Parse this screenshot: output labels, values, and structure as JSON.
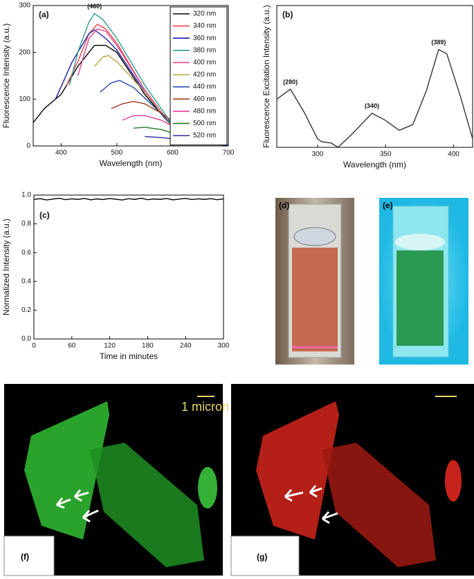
{
  "chart_data": [
    {
      "type": "line",
      "title": "(a)",
      "x_label": "Wavelength (nm)",
      "y_label": "Fluorescence Intensity (a.u.)",
      "annotations": [
        {
          "text": "(460)",
          "x": 460,
          "y": 283
        }
      ],
      "xlim": [
        350,
        700
      ],
      "xticks": [
        400,
        500,
        600,
        700
      ],
      "ylim": [
        0,
        300
      ],
      "yticks": [
        0,
        100,
        200,
        300
      ],
      "legend": "upper right",
      "series": [
        {
          "name": "320 nm",
          "color": "#000000",
          "x": [
            350,
            370,
            400,
            430,
            460,
            480,
            500,
            550,
            600,
            650,
            700
          ],
          "values": [
            50,
            80,
            110,
            170,
            215,
            215,
            200,
            110,
            40,
            10,
            2
          ]
        },
        {
          "name": "340 nm",
          "color": "#e8434a",
          "x": [
            410,
            430,
            450,
            465,
            480,
            500,
            550,
            600,
            650,
            700
          ],
          "values": [
            130,
            180,
            240,
            260,
            250,
            220,
            120,
            40,
            10,
            2
          ]
        },
        {
          "name": "360 nm",
          "color": "#1a1aa6",
          "x": [
            390,
            420,
            450,
            460,
            480,
            500,
            550,
            600,
            650,
            700
          ],
          "values": [
            100,
            180,
            240,
            248,
            230,
            205,
            115,
            40,
            10,
            2
          ]
        },
        {
          "name": "380 nm",
          "color": "#2a9d8f",
          "x": [
            415,
            430,
            450,
            460,
            475,
            500,
            550,
            600,
            650,
            700
          ],
          "values": [
            130,
            200,
            265,
            283,
            270,
            230,
            130,
            45,
            12,
            2
          ]
        },
        {
          "name": "400 nm",
          "color": "#e0458c",
          "x": [
            430,
            450,
            465,
            480,
            500,
            550,
            600,
            650,
            700
          ],
          "values": [
            150,
            230,
            250,
            245,
            215,
            120,
            40,
            10,
            2
          ]
        },
        {
          "name": "420 nm",
          "color": "#b5a642",
          "x": [
            460,
            475,
            485,
            500,
            550,
            600,
            650,
            700
          ],
          "values": [
            170,
            190,
            193,
            180,
            115,
            40,
            10,
            2
          ]
        },
        {
          "name": "440 nm",
          "color": "#2348b0",
          "x": [
            470,
            490,
            505,
            530,
            570,
            600,
            650,
            700
          ],
          "values": [
            115,
            135,
            140,
            125,
            80,
            45,
            12,
            2
          ]
        },
        {
          "name": "460 nm",
          "color": "#a23a1f",
          "x": [
            490,
            510,
            530,
            550,
            580,
            620,
            660,
            700
          ],
          "values": [
            80,
            90,
            95,
            90,
            70,
            35,
            10,
            2
          ]
        },
        {
          "name": "480 nm",
          "color": "#e8399a",
          "x": [
            510,
            530,
            550,
            580,
            620,
            660,
            700
          ],
          "values": [
            55,
            65,
            65,
            55,
            30,
            10,
            2
          ]
        },
        {
          "name": "500 nm",
          "color": "#1e7a1e",
          "x": [
            530,
            550,
            580,
            620,
            660,
            700
          ],
          "values": [
            38,
            40,
            35,
            20,
            8,
            2
          ]
        },
        {
          "name": "520 nm",
          "color": "#2b2b9f",
          "x": [
            550,
            580,
            620,
            660,
            700
          ],
          "values": [
            20,
            18,
            12,
            5,
            1
          ]
        }
      ]
    },
    {
      "type": "line",
      "title": "(b)",
      "x_label": "Wavelength (nm)",
      "y_label": "Fluorescence Excitation Intensity (a.u.)",
      "annotations": [
        {
          "text": "(280)",
          "x": 280,
          "y": 41
        },
        {
          "text": "(340)",
          "x": 340,
          "y": 24
        },
        {
          "text": "(389)",
          "x": 389,
          "y": 69
        }
      ],
      "xlim": [
        270,
        414
      ],
      "xticks": [
        300,
        350,
        400
      ],
      "ylim": [
        0,
        100
      ],
      "series": [
        {
          "color": "#333333",
          "x": [
            270,
            280,
            290,
            300,
            303,
            310,
            315,
            325,
            333,
            340,
            350,
            360,
            370,
            380,
            389,
            395,
            405,
            414
          ],
          "values": [
            34,
            41,
            25,
            6,
            4,
            3,
            0,
            9,
            17,
            24,
            19,
            12,
            16,
            40,
            69,
            66,
            36,
            6
          ]
        }
      ]
    },
    {
      "type": "line",
      "title": "(c)",
      "x_label": "Time in minutes",
      "y_label": "Normalized Intensity (a.u.)",
      "xlim": [
        0,
        300
      ],
      "xticks": [
        0,
        60,
        120,
        180,
        240,
        300
      ],
      "ylim": [
        0,
        1.0
      ],
      "yticks": [
        {
          "value": 0,
          "label": "0.0"
        },
        {
          "value": 0.2,
          "label": "0.2"
        },
        {
          "value": 0.4,
          "label": "0.4"
        },
        {
          "value": 0.6,
          "label": "0.6"
        },
        {
          "value": 0.8,
          "label": "0.8"
        },
        {
          "value": 1.0,
          "label": "1.0"
        }
      ],
      "series": [
        {
          "color": "#000000",
          "x": [
            0,
            10,
            20,
            30,
            40,
            50,
            60,
            70,
            80,
            90,
            100,
            110,
            120,
            130,
            140,
            150,
            160,
            170,
            180,
            190,
            200,
            210,
            220,
            230,
            240,
            250,
            260,
            270,
            280,
            290,
            300
          ],
          "values": [
            0.97,
            0.975,
            0.966,
            0.972,
            0.978,
            0.968,
            0.974,
            0.97,
            0.977,
            0.967,
            0.973,
            0.969,
            0.976,
            0.971,
            0.966,
            0.975,
            0.97,
            0.978,
            0.968,
            0.973,
            0.97,
            0.976,
            0.967,
            0.972,
            0.977,
            0.969,
            0.974,
            0.97,
            0.975,
            0.968,
            0.973
          ]
        }
      ]
    }
  ],
  "image_panels": [
    {
      "label": "(d)"
    },
    {
      "label": "(e)"
    },
    {
      "label": "(f)",
      "scale_bar": "1 micron"
    },
    {
      "label": "(g)"
    }
  ]
}
